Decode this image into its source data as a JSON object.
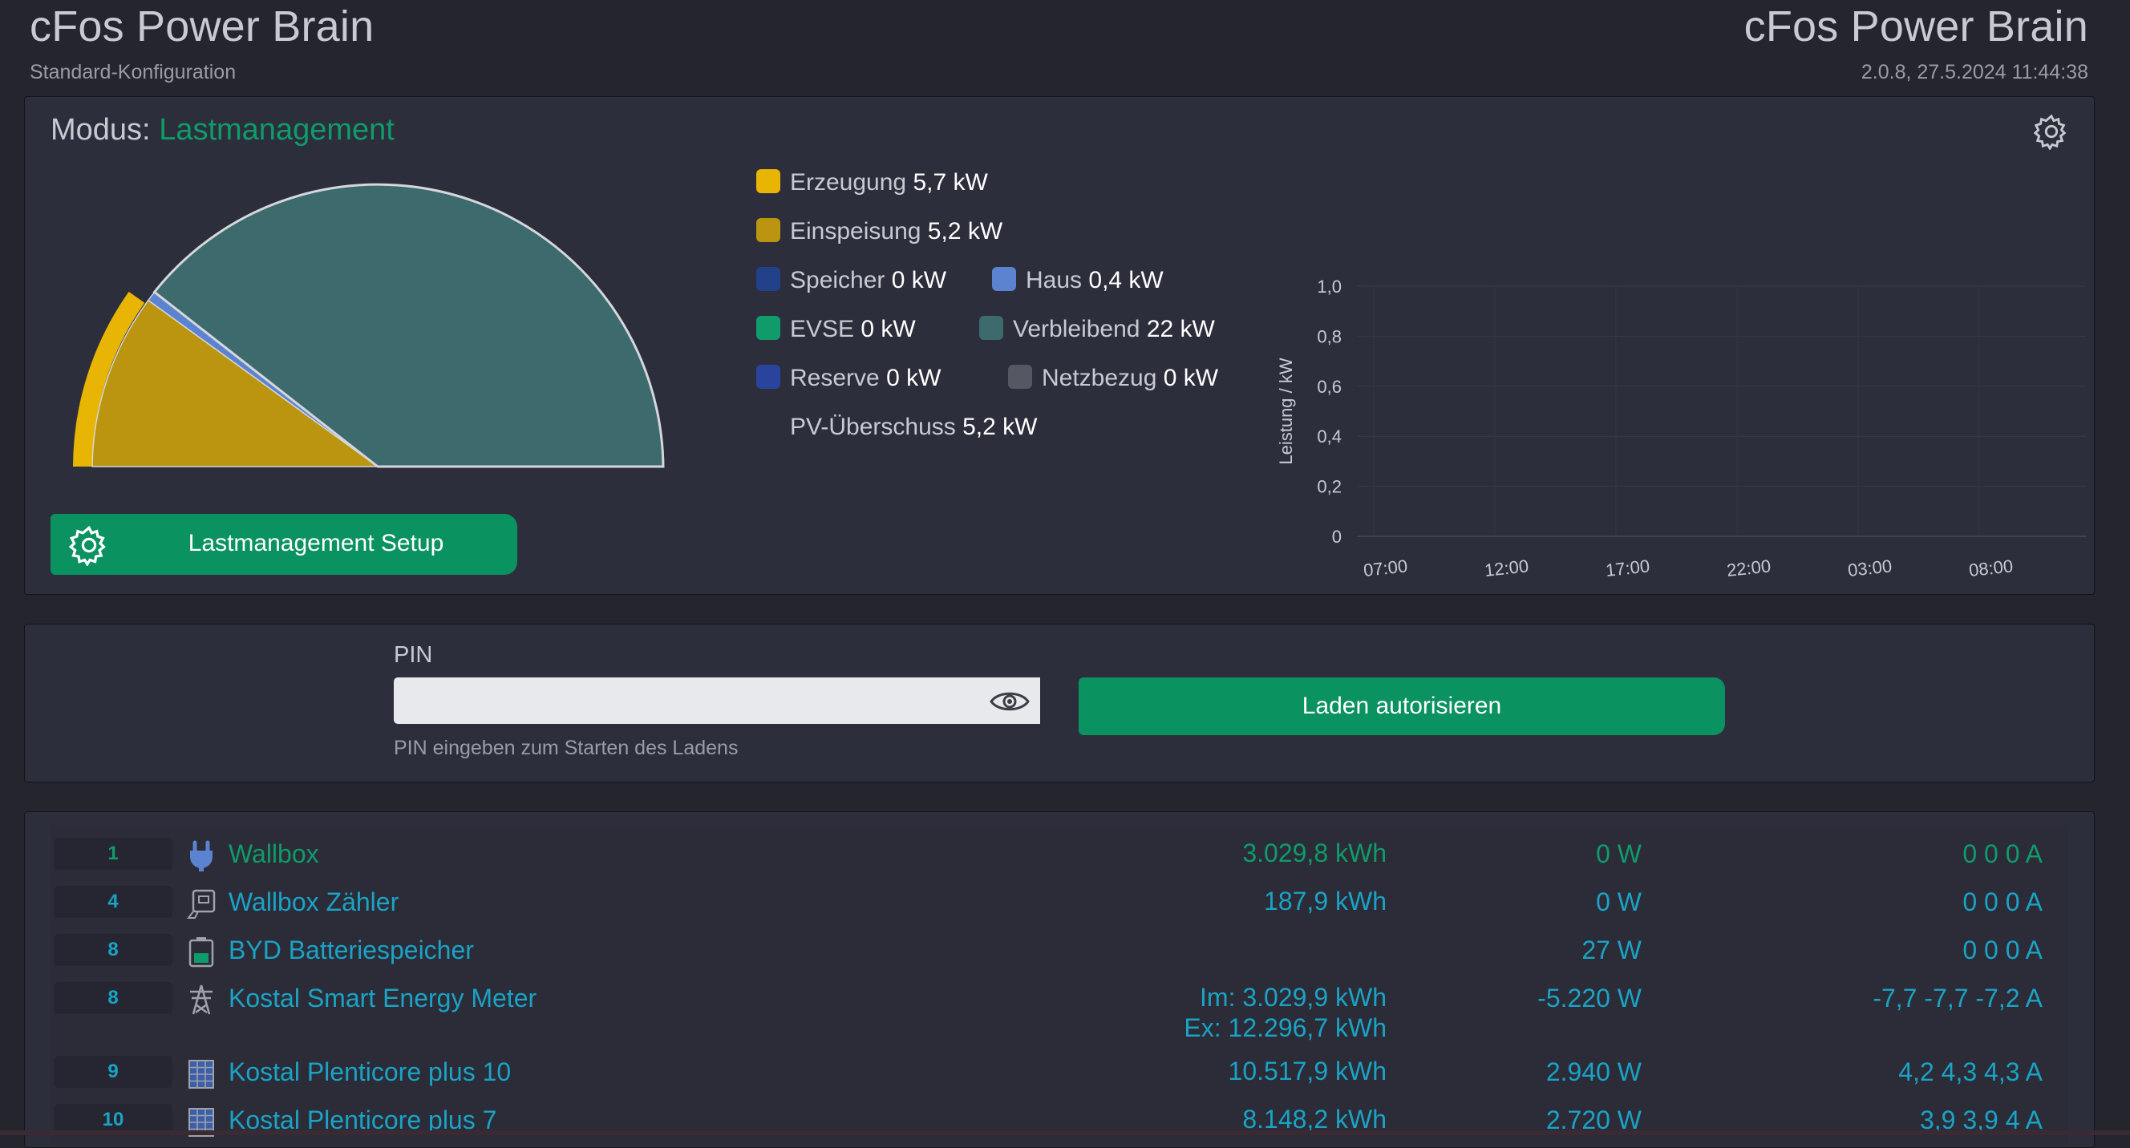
{
  "header": {
    "title_left": "cFos Power Brain",
    "subtitle_left": "Standard-Konfiguration",
    "title_right": "cFos Power Brain",
    "subtitle_right": "2.0.8, 27.5.2024 11:44:38"
  },
  "mode": {
    "label": "Modus:",
    "value": "Lastmanagement",
    "setup_button": "Lastmanagement Setup"
  },
  "legend": {
    "erzeugung": {
      "label": "Erzeugung",
      "value": "5,7 kW",
      "color": "#e8b504"
    },
    "einspeisung": {
      "label": "Einspeisung",
      "value": "5,2 kW",
      "color": "#bb9510"
    },
    "speicher": {
      "label": "Speicher",
      "value": "0 kW",
      "color": "#23408a"
    },
    "haus": {
      "label": "Haus",
      "value": "0,4 kW",
      "color": "#5b83d0"
    },
    "evse": {
      "label": "EVSE",
      "value": "0 kW",
      "color": "#0f9b6a"
    },
    "verbleibend": {
      "label": "Verbleibend",
      "value": "22 kW",
      "color": "#3d6a6c"
    },
    "reserve": {
      "label": "Reserve",
      "value": "0 kW",
      "color": "#2a449e"
    },
    "netzbezug": {
      "label": "Netzbezug",
      "value": "0 kW",
      "color": "#555763"
    },
    "pv": {
      "label": "PV-Überschuss",
      "value": "5,2 kW"
    }
  },
  "chart_data": {
    "type": "line",
    "ylabel": "Leistung / kW",
    "ylim": [
      0,
      1.0
    ],
    "yticks": [
      "1,0",
      "0,8",
      "0,6",
      "0,4",
      "0,2",
      "0"
    ],
    "xticks": [
      "07:00",
      "12:00",
      "17:00",
      "22:00",
      "03:00",
      "08:00"
    ],
    "series": [],
    "grid": true
  },
  "pin": {
    "label": "PIN",
    "value": "",
    "hint": "PIN eingeben zum Starten des Ladens",
    "authorize_button": "Laden autorisieren"
  },
  "devices": [
    {
      "id": "1",
      "icon": "plug-icon",
      "name": "Wallbox",
      "energy": "3.029,8 kWh",
      "energy2": "",
      "power": "0 W",
      "current": "0 0 0 A",
      "active": true
    },
    {
      "id": "4",
      "icon": "meter-icon",
      "name": "Wallbox Zähler",
      "energy": "187,9 kWh",
      "energy2": "",
      "power": "0 W",
      "current": "0 0 0 A",
      "active": false
    },
    {
      "id": "8",
      "icon": "battery-icon",
      "name": "BYD Batteriespeicher",
      "energy": "",
      "energy2": "",
      "power": "27 W",
      "current": "0 0 0 A",
      "active": false
    },
    {
      "id": "8",
      "icon": "power-tower-icon",
      "name": "Kostal Smart Energy Meter",
      "energy": "Im: 3.029,9 kWh",
      "energy2": "Ex: 12.296,7 kWh",
      "power": "-5.220 W",
      "current": "-7,7 -7,7 -7,2 A",
      "active": false
    },
    {
      "id": "9",
      "icon": "solar-panel-icon",
      "name": "Kostal Plenticore plus 10",
      "energy": "10.517,9 kWh",
      "energy2": "",
      "power": "2.940 W",
      "current": "4,2 4,3 4,3 A",
      "active": false
    },
    {
      "id": "10",
      "icon": "solar-panel-icon",
      "name": "Kostal Plenticore plus 7",
      "energy": "8.148,2 kWh",
      "energy2": "",
      "power": "2.720 W",
      "current": "3,9 3,9 4 A",
      "active": false
    }
  ]
}
